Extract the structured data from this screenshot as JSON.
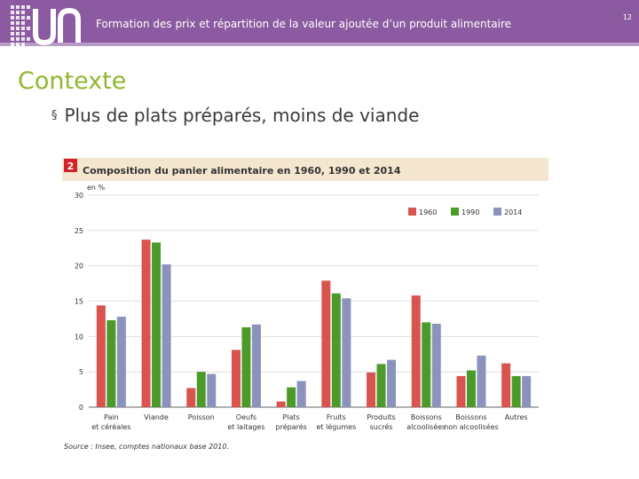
{
  "header": {
    "title": "Formation des prix et répartition de la valeur ajoutée d’un produit alimentaire",
    "page_number": "12",
    "bg_color": "#8c5aa0"
  },
  "slide": {
    "section_title": "Contexte",
    "bullet_mark": "§",
    "bullet_text": "Plus de plats préparés, moins de viande",
    "title_color": "#8fb82f"
  },
  "figure": {
    "number": "2",
    "source": "Source : Insee, comptes nationaux base 2010."
  },
  "chart_data": {
    "type": "bar",
    "title": "Composition du panier alimentaire en 1960, 1990 et 2014",
    "ylabel": "en %",
    "ylim": [
      0,
      30
    ],
    "yticks": [
      0,
      5,
      10,
      15,
      20,
      25,
      30
    ],
    "grid": true,
    "legend_position": "top-right",
    "categories": [
      [
        "Pain",
        "et céréales"
      ],
      [
        "Viande"
      ],
      [
        "Poisson"
      ],
      [
        "Oeufs",
        "et laitages"
      ],
      [
        "Plats",
        "préparés"
      ],
      [
        "Fruits",
        "et légumes"
      ],
      [
        "Produits",
        "sucrés"
      ],
      [
        "Boissons",
        "alcoolisées"
      ],
      [
        "Boissons",
        "non alcoolisées"
      ],
      [
        "Autres"
      ]
    ],
    "series": [
      {
        "name": "1960",
        "color": "#d9534f",
        "values": [
          14.4,
          23.7,
          2.7,
          8.1,
          0.8,
          17.9,
          4.9,
          15.8,
          4.4,
          6.2
        ]
      },
      {
        "name": "1990",
        "color": "#4c9a2a",
        "values": [
          12.3,
          23.3,
          5.0,
          11.3,
          2.8,
          16.1,
          6.1,
          12.0,
          5.2,
          4.4
        ]
      },
      {
        "name": "2014",
        "color": "#8b93bd",
        "values": [
          12.8,
          20.2,
          4.7,
          11.7,
          3.7,
          15.4,
          6.7,
          11.8,
          7.3,
          4.4
        ]
      }
    ]
  }
}
